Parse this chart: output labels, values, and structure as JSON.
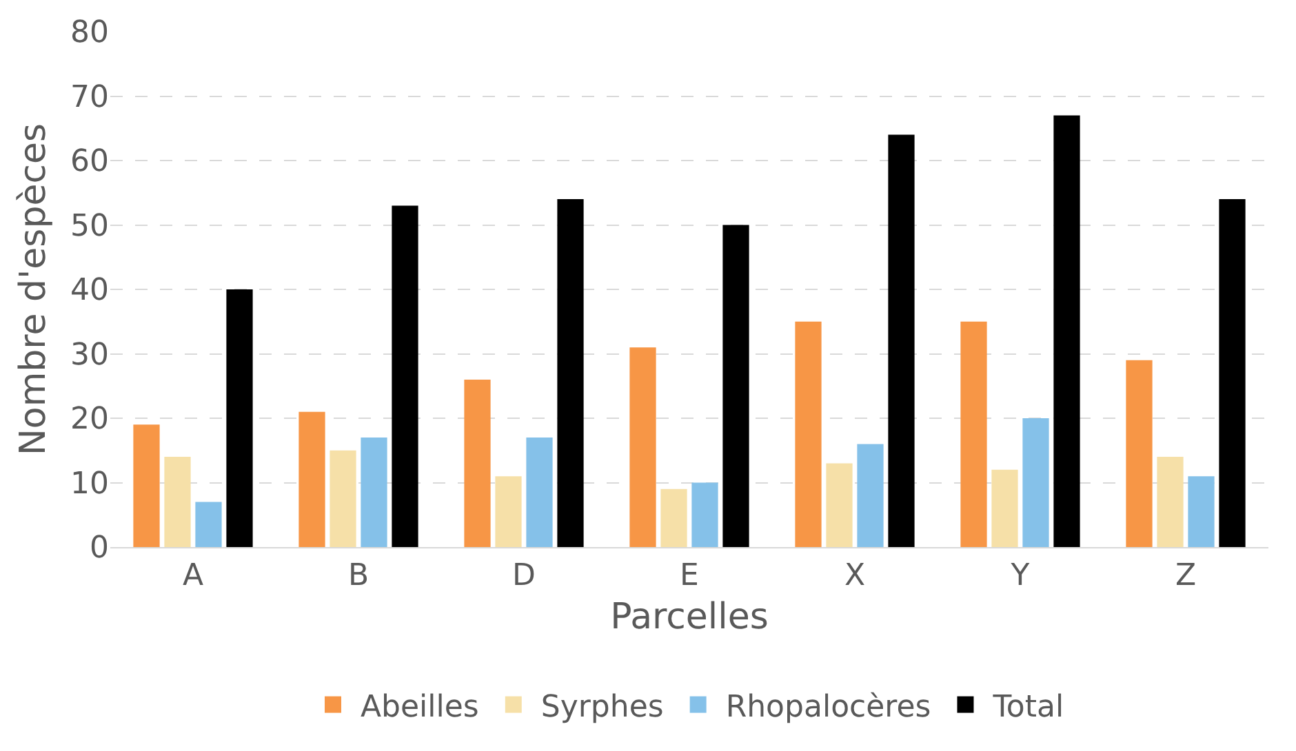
{
  "chart_data": {
    "type": "bar",
    "xlabel": "Parcelles",
    "ylabel": "Nombre d'espèces",
    "categories": [
      "A",
      "B",
      "D",
      "E",
      "X",
      "Y",
      "Z"
    ],
    "series": [
      {
        "name": "Abeilles",
        "color": "#f79646",
        "values": [
          19,
          21,
          26,
          31,
          35,
          35,
          29
        ]
      },
      {
        "name": "Syrphes",
        "color": "#f6e0a8",
        "values": [
          14,
          15,
          11,
          9,
          13,
          12,
          14
        ]
      },
      {
        "name": "Rhopalocères",
        "color": "#85c1e9",
        "values": [
          7,
          17,
          17,
          10,
          16,
          20,
          11
        ]
      },
      {
        "name": "Total",
        "color": "#000000",
        "values": [
          40,
          53,
          54,
          50,
          64,
          67,
          54
        ]
      }
    ],
    "ylim": [
      0,
      80
    ],
    "yticks": [
      0,
      10,
      20,
      30,
      40,
      50,
      60,
      70,
      80
    ],
    "grid": "y",
    "legend": "bottom"
  }
}
